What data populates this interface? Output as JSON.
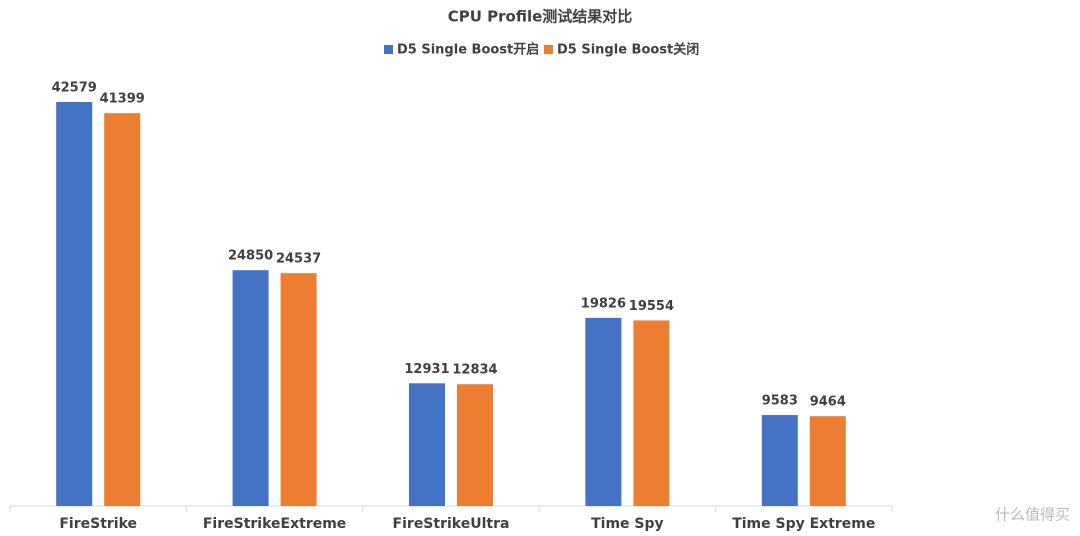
{
  "chart_data": {
    "type": "bar",
    "title": "CPU Profile测试结果对比",
    "categories": [
      "FireStrike",
      "FireStrikeExtreme",
      "FireStrikeUltra",
      "Time Spy",
      "Time Spy Extreme"
    ],
    "series": [
      {
        "name": "D5 Single Boost开启",
        "color": "#4472c4",
        "values": [
          42579,
          24850,
          12931,
          19826,
          9583
        ]
      },
      {
        "name": "D5 Single Boost关闭",
        "color": "#ed7d31",
        "values": [
          41399,
          24537,
          12834,
          19554,
          9464
        ]
      }
    ],
    "ylim": [
      0,
      45000
    ],
    "legend": "top",
    "watermark": "什么值得买"
  }
}
